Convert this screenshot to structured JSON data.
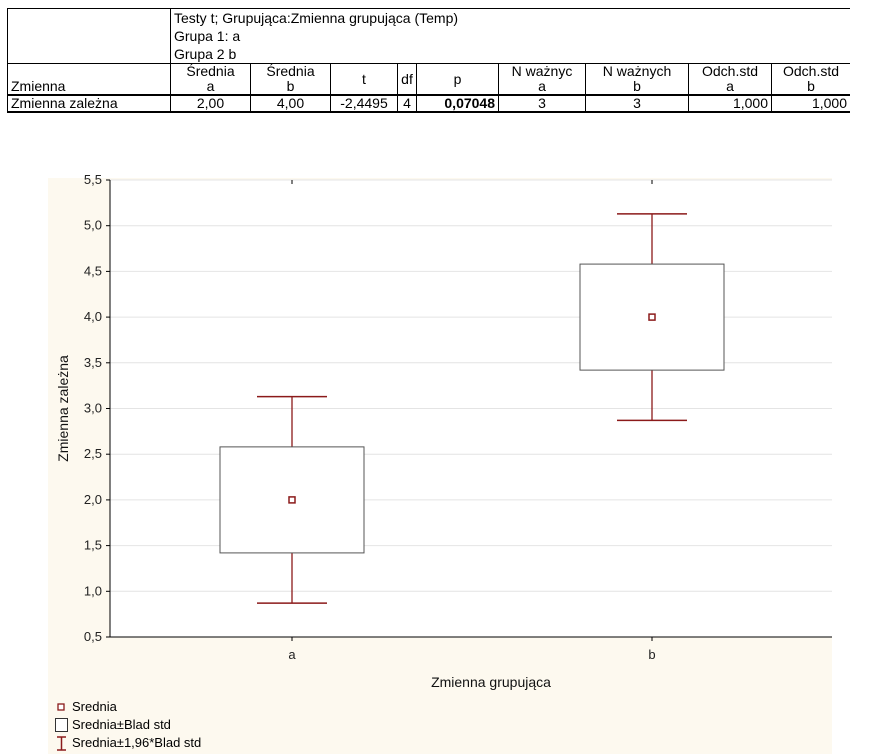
{
  "table": {
    "title_lines": [
      "Testy t; Grupująca:Zmienna grupująca (Temp)",
      "Grupa 1: a",
      "Grupa 2 b"
    ],
    "row_header": "Zmienna",
    "columns": [
      [
        "Średnia",
        "a"
      ],
      [
        "Średnia",
        "b"
      ],
      [
        "t",
        ""
      ],
      [
        "df",
        ""
      ],
      [
        "p",
        ""
      ],
      [
        "N ważnyc",
        "a"
      ],
      [
        "N ważnych",
        "b"
      ],
      [
        "Odch.std",
        "a"
      ],
      [
        "Odch.std",
        "b"
      ]
    ],
    "row": {
      "name": "Zmienna zależna",
      "values": [
        "2,00",
        "4,00",
        "-2,4495",
        "4",
        "0,07048",
        "3",
        "3",
        "1,000",
        "1,000"
      ]
    }
  },
  "chart_data": {
    "type": "box",
    "categories": [
      "a",
      "b"
    ],
    "mean": [
      2.0,
      4.0
    ],
    "box_low": [
      1.42,
      3.42
    ],
    "box_high": [
      2.58,
      4.58
    ],
    "whisker_low": [
      0.87,
      2.87
    ],
    "whisker_high": [
      3.13,
      5.13
    ],
    "ylim": [
      0.5,
      5.5
    ],
    "yticks": [
      "0,5",
      "1,0",
      "1,5",
      "2,0",
      "2,5",
      "3,0",
      "3,5",
      "4,0",
      "4,5",
      "5,0",
      "5,5"
    ],
    "xlabel": "Zmienna grupująca",
    "ylabel": "Zmienna zależna",
    "grid": true,
    "color": "#8b1a1a"
  },
  "legend": {
    "items": [
      "Srednia",
      "Srednia±Blad std",
      "Srednia±1,96*Blad std"
    ]
  }
}
